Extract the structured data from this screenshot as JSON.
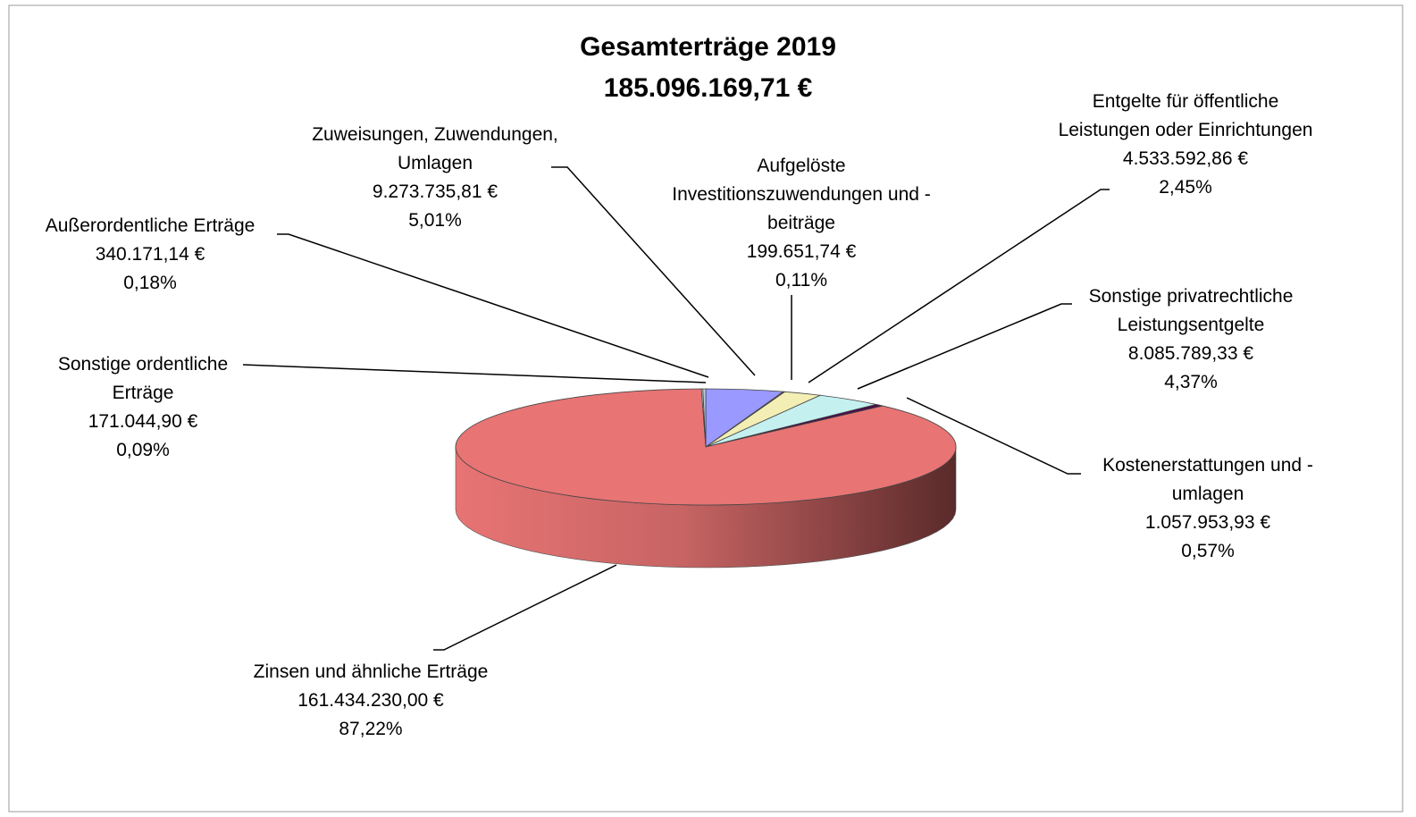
{
  "chart_data": {
    "type": "pie3d",
    "title": "Gesamterträge 2019",
    "subtitle": "185.096.169,71 €",
    "categories": [
      "Zuweisungen, Zuwendungen, Umlagen",
      "Aufgelöste Investitionszuwendungen und -beiträge",
      "Entgelte für öffentliche Leistungen oder Einrichtungen",
      "Sonstige privatrechtliche Leistungsentgelte",
      "Kostenerstattungen und -umlagen",
      "Zinsen und ähnliche Erträge",
      "Sonstige ordentliche Erträge",
      "Außerordentliche Erträge"
    ],
    "values": [
      9273735.81,
      199651.74,
      4533592.86,
      8085789.33,
      1057953.93,
      161434230.0,
      171044.9,
      340171.14
    ],
    "value_labels": [
      "9.273.735,81 €",
      "199.651,74 €",
      "4.533.592,86 €",
      "8.085.789,33 €",
      "1.057.953,93 €",
      "161.434.230,00 €",
      "171.044,90 €",
      "340.171,14 €"
    ],
    "percentages": [
      5.01,
      0.11,
      2.45,
      4.37,
      0.57,
      87.22,
      0.09,
      0.18
    ],
    "percentage_labels": [
      "5,01%",
      "0,11%",
      "2,45%",
      "4,37%",
      "0,57%",
      "87,22%",
      "0,09%",
      "0,18%"
    ],
    "colors": [
      "#9999ff",
      "#993366",
      "#f3eeb4",
      "#c4f0f0",
      "#4a0a48",
      "#e87474",
      "#cfe0ea",
      "#b8cde0"
    ]
  }
}
